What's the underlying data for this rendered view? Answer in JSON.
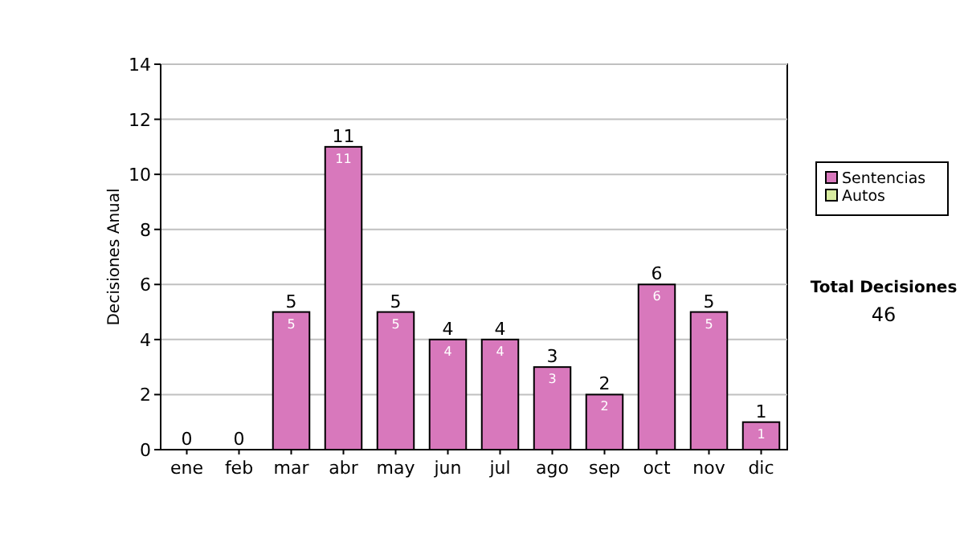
{
  "chart_data": {
    "type": "bar",
    "stacked": true,
    "ylabel": "Decisiones Anual",
    "categories": [
      "ene",
      "feb",
      "mar",
      "abr",
      "may",
      "jun",
      "jul",
      "ago",
      "sep",
      "oct",
      "nov",
      "dic"
    ],
    "series": [
      {
        "name": "Sentencias",
        "color": "#d878bc",
        "values": [
          0,
          0,
          5,
          11,
          5,
          4,
          4,
          3,
          2,
          6,
          5,
          1
        ],
        "value_labels": [
          null,
          null,
          "5",
          "11",
          "5",
          "4",
          "4",
          "3",
          "2",
          "6",
          "5",
          "1"
        ]
      },
      {
        "name": "Autos",
        "color": "#d8eca0",
        "values": [
          0,
          0,
          0,
          0,
          0,
          0,
          0,
          0,
          0,
          0,
          0,
          0
        ]
      }
    ],
    "totals": [
      "0",
      "0",
      "5",
      "11",
      "5",
      "4",
      "4",
      "3",
      "2",
      "6",
      "5",
      "1"
    ],
    "ylim": [
      0,
      14
    ],
    "yticks": [
      0,
      2,
      4,
      6,
      8,
      10,
      12,
      14
    ],
    "grid": "y",
    "legend": "right",
    "annotations": [
      "Total Decisiones",
      "46"
    ]
  }
}
